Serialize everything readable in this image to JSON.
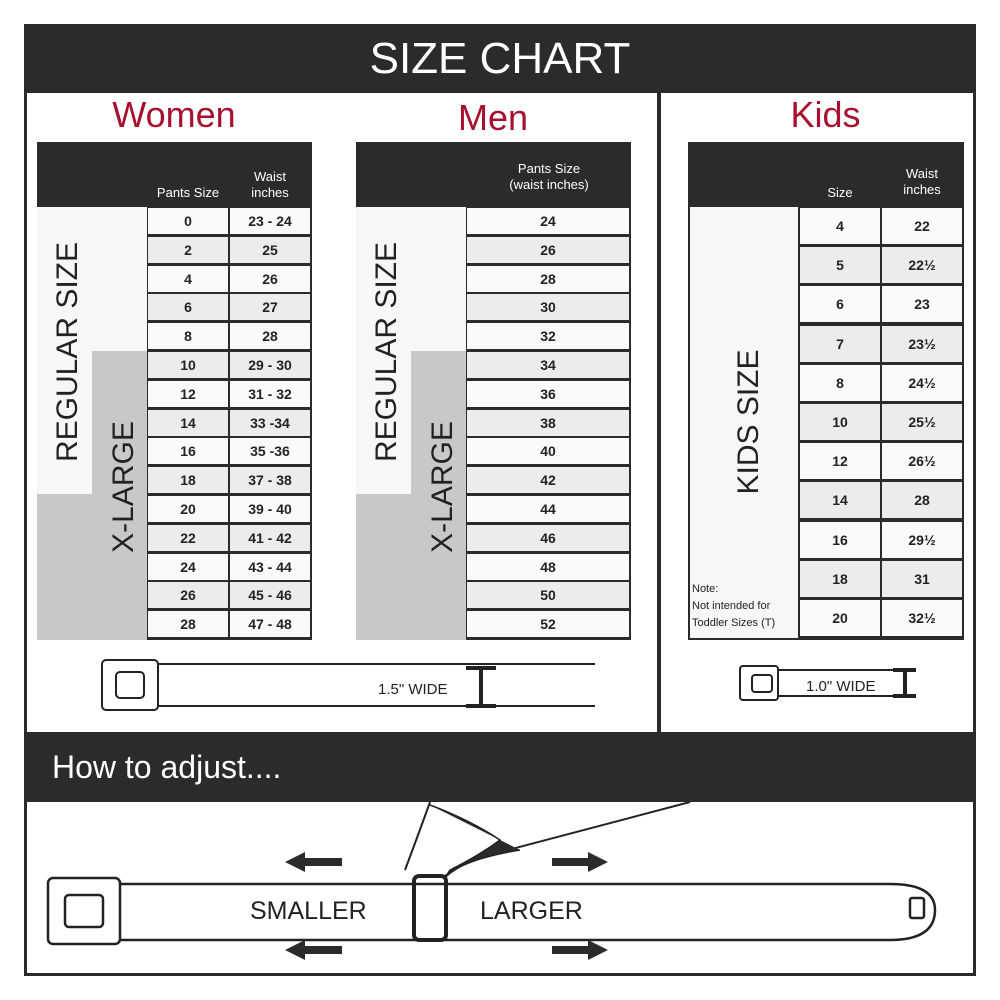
{
  "title": "SIZE CHART",
  "women": {
    "title": "Women",
    "col1": "Pants Size",
    "col2a": "Waist",
    "col2b": "inches",
    "regular": "REGULAR SIZE",
    "xlarge": "X-LARGE",
    "rows": [
      [
        "0",
        "23 - 24"
      ],
      [
        "2",
        "25"
      ],
      [
        "4",
        "26"
      ],
      [
        "6",
        "27"
      ],
      [
        "8",
        "28"
      ],
      [
        "10",
        "29 - 30"
      ],
      [
        "12",
        "31 - 32"
      ],
      [
        "14",
        "33 -34"
      ],
      [
        "16",
        "35 -36"
      ],
      [
        "18",
        "37 - 38"
      ],
      [
        "20",
        "39 - 40"
      ],
      [
        "22",
        "41 - 42"
      ],
      [
        "24",
        "43 - 44"
      ],
      [
        "26",
        "45 - 46"
      ],
      [
        "28",
        "47 - 48"
      ]
    ],
    "belt_label": "1.5\" WIDE"
  },
  "men": {
    "title": "Men",
    "col1a": "Pants Size",
    "col1b": "(waist inches)",
    "regular": "REGULAR SIZE",
    "xlarge": "X-LARGE",
    "rows": [
      "24",
      "26",
      "28",
      "30",
      "32",
      "34",
      "36",
      "38",
      "40",
      "42",
      "44",
      "46",
      "48",
      "50",
      "52"
    ]
  },
  "kids": {
    "title": "Kids",
    "col1": "Size",
    "col2a": "Waist",
    "col2b": "inches",
    "label": "KIDS SIZE",
    "note1": "Note:",
    "note2": "Not intended for",
    "note3": "Toddler Sizes (T)",
    "rows": [
      [
        "4",
        "22"
      ],
      [
        "5",
        "22½"
      ],
      [
        "6",
        "23"
      ],
      [
        "7",
        "23½"
      ],
      [
        "8",
        "24½"
      ],
      [
        "10",
        "25½"
      ],
      [
        "12",
        "26½"
      ],
      [
        "14",
        "28"
      ],
      [
        "16",
        "29½"
      ],
      [
        "18",
        "31"
      ],
      [
        "20",
        "32½"
      ]
    ],
    "belt_label": "1.0\" WIDE"
  },
  "adjust": {
    "title": "How to adjust....",
    "smaller": "SMALLER",
    "larger": "LARGER"
  },
  "colors": {
    "dark": "#2b2b2b",
    "accent": "#a8102f",
    "row_alt": "#ececec",
    "xlarge_bg": "#c8c8c8"
  }
}
